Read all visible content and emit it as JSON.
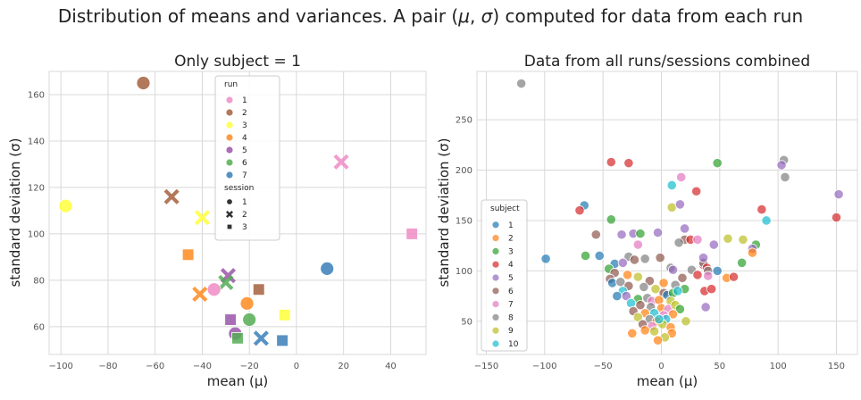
{
  "figure": {
    "suptitle_pre": "Distribution of means and variances.  A pair (",
    "suptitle_mu": "μ",
    "suptitle_comma": ", ",
    "suptitle_sigma": "σ",
    "suptitle_post": ") computed for data from each run"
  },
  "colors": {
    "background": "#ffffff",
    "grid": "#d8d8d8",
    "axis": "#555555"
  },
  "chart_data": [
    {
      "type": "scatter",
      "title": "Only subject = 1",
      "xlabel": "mean (μ)",
      "ylabel": "standard deviation (σ)",
      "xlim": [
        -105,
        55
      ],
      "ylim": [
        48,
        170
      ],
      "xticks": [
        -100,
        -80,
        -60,
        -40,
        -20,
        0,
        20,
        40
      ],
      "yticks": [
        60,
        80,
        100,
        120,
        140,
        160
      ],
      "grid": true,
      "legend": {
        "placement": "top-center",
        "hue_title": "run",
        "hue": [
          {
            "label": "1",
            "color": "#f08cc5"
          },
          {
            "label": "2",
            "color": "#a5603e"
          },
          {
            "label": "3",
            "color": "#ffff3a"
          },
          {
            "label": "4",
            "color": "#ff8a1e"
          },
          {
            "label": "5",
            "color": "#9a55a8"
          },
          {
            "label": "6",
            "color": "#55ad55"
          },
          {
            "label": "7",
            "color": "#3a7fb8"
          }
        ],
        "style_title": "session",
        "style": [
          {
            "label": "1",
            "marker": "circle"
          },
          {
            "label": "2",
            "marker": "x"
          },
          {
            "label": "3",
            "marker": "square"
          }
        ]
      },
      "points": [
        {
          "run": 2,
          "session": 1,
          "x": -65,
          "y": 165
        },
        {
          "run": 1,
          "session": 2,
          "x": 19,
          "y": 131
        },
        {
          "run": 2,
          "session": 2,
          "x": -53,
          "y": 116
        },
        {
          "run": 3,
          "session": 1,
          "x": -98,
          "y": 112
        },
        {
          "run": 3,
          "session": 2,
          "x": -40,
          "y": 107
        },
        {
          "run": 1,
          "session": 3,
          "x": 49,
          "y": 100
        },
        {
          "run": 4,
          "session": 3,
          "x": -46,
          "y": 91
        },
        {
          "run": 7,
          "session": 1,
          "x": 13,
          "y": 85
        },
        {
          "run": 5,
          "session": 2,
          "x": -29,
          "y": 82
        },
        {
          "run": 6,
          "session": 2,
          "x": -30,
          "y": 79
        },
        {
          "run": 2,
          "session": 3,
          "x": -16,
          "y": 76
        },
        {
          "run": 1,
          "session": 1,
          "x": -35,
          "y": 76
        },
        {
          "run": 4,
          "session": 2,
          "x": -41,
          "y": 74
        },
        {
          "run": 4,
          "session": 1,
          "x": -21,
          "y": 70
        },
        {
          "run": 3,
          "session": 3,
          "x": -5,
          "y": 65
        },
        {
          "run": 5,
          "session": 3,
          "x": -28,
          "y": 63
        },
        {
          "run": 6,
          "session": 1,
          "x": -20,
          "y": 63
        },
        {
          "run": 5,
          "session": 1,
          "x": -26,
          "y": 57
        },
        {
          "run": 6,
          "session": 3,
          "x": -25,
          "y": 55
        },
        {
          "run": 7,
          "session": 2,
          "x": -15,
          "y": 55
        },
        {
          "run": 7,
          "session": 3,
          "x": -6,
          "y": 54
        }
      ]
    },
    {
      "type": "scatter",
      "title": "Data from all runs/sessions combined",
      "xlabel": "mean (μ)",
      "ylabel": "standard deviation (σ)",
      "xlim": [
        -158,
        168
      ],
      "ylim": [
        17,
        298
      ],
      "xticks": [
        -150,
        -100,
        -50,
        0,
        50,
        100,
        150
      ],
      "yticks": [
        50,
        100,
        150,
        200,
        250
      ],
      "grid": true,
      "legend": {
        "placement": "lower-left",
        "hue_title": "subject",
        "hue": [
          {
            "label": "1",
            "color": "#1f77b4"
          },
          {
            "label": "2",
            "color": "#ff7f0e"
          },
          {
            "label": "3",
            "color": "#2ca02c"
          },
          {
            "label": "4",
            "color": "#d62728"
          },
          {
            "label": "5",
            "color": "#9467bd"
          },
          {
            "label": "6",
            "color": "#8c564b"
          },
          {
            "label": "7",
            "color": "#e377c2"
          },
          {
            "label": "8",
            "color": "#7f7f7f"
          },
          {
            "label": "9",
            "color": "#bcbd22"
          },
          {
            "label": "10",
            "color": "#17becf"
          }
        ]
      },
      "points": [
        {
          "subject": 8,
          "x": -120,
          "y": 286
        },
        {
          "subject": 4,
          "x": -43,
          "y": 208
        },
        {
          "subject": 4,
          "x": -28,
          "y": 207
        },
        {
          "subject": 3,
          "x": 48,
          "y": 207
        },
        {
          "subject": 8,
          "x": 105,
          "y": 210
        },
        {
          "subject": 5,
          "x": 103,
          "y": 205
        },
        {
          "subject": 8,
          "x": 106,
          "y": 193
        },
        {
          "subject": 7,
          "x": 17,
          "y": 193
        },
        {
          "subject": 10,
          "x": 9,
          "y": 185
        },
        {
          "subject": 4,
          "x": 30,
          "y": 179
        },
        {
          "subject": 5,
          "x": 152,
          "y": 176
        },
        {
          "subject": 1,
          "x": -66,
          "y": 165
        },
        {
          "subject": 4,
          "x": -70,
          "y": 160
        },
        {
          "subject": 9,
          "x": 9,
          "y": 163
        },
        {
          "subject": 5,
          "x": 16,
          "y": 166
        },
        {
          "subject": 4,
          "x": 86,
          "y": 161
        },
        {
          "subject": 3,
          "x": -43,
          "y": 151
        },
        {
          "subject": 4,
          "x": 150,
          "y": 153
        },
        {
          "subject": 10,
          "x": 90,
          "y": 150
        },
        {
          "subject": 5,
          "x": 20,
          "y": 142
        },
        {
          "subject": 6,
          "x": -56,
          "y": 136
        },
        {
          "subject": 5,
          "x": -34,
          "y": 136
        },
        {
          "subject": 5,
          "x": -24,
          "y": 137
        },
        {
          "subject": 3,
          "x": -18,
          "y": 137
        },
        {
          "subject": 5,
          "x": -3,
          "y": 138
        },
        {
          "subject": 6,
          "x": 20,
          "y": 131
        },
        {
          "subject": 4,
          "x": 25,
          "y": 131
        },
        {
          "subject": 7,
          "x": 31,
          "y": 131
        },
        {
          "subject": 8,
          "x": 15,
          "y": 128
        },
        {
          "subject": 5,
          "x": 45,
          "y": 126
        },
        {
          "subject": 9,
          "x": 57,
          "y": 132
        },
        {
          "subject": 9,
          "x": 70,
          "y": 131
        },
        {
          "subject": 3,
          "x": 81,
          "y": 126
        },
        {
          "subject": 7,
          "x": -20,
          "y": 126
        },
        {
          "subject": 5,
          "x": 78,
          "y": 122
        },
        {
          "subject": 2,
          "x": 78,
          "y": 118
        },
        {
          "subject": 1,
          "x": -99,
          "y": 112
        },
        {
          "subject": 3,
          "x": -65,
          "y": 115
        },
        {
          "subject": 1,
          "x": -53,
          "y": 115
        },
        {
          "subject": 8,
          "x": -28,
          "y": 114
        },
        {
          "subject": 6,
          "x": -23,
          "y": 111
        },
        {
          "subject": 8,
          "x": -14,
          "y": 112
        },
        {
          "subject": 6,
          "x": -1,
          "y": 113
        },
        {
          "subject": 1,
          "x": -40,
          "y": 107
        },
        {
          "subject": 5,
          "x": -33,
          "y": 108
        },
        {
          "subject": 3,
          "x": 69,
          "y": 108
        },
        {
          "subject": 4,
          "x": 36,
          "y": 106
        },
        {
          "subject": 8,
          "x": 36,
          "y": 108
        },
        {
          "subject": 5,
          "x": 36,
          "y": 113
        },
        {
          "subject": 4,
          "x": 39,
          "y": 103
        },
        {
          "subject": 8,
          "x": 8,
          "y": 103
        },
        {
          "subject": 5,
          "x": 10,
          "y": 101
        },
        {
          "subject": 8,
          "x": 26,
          "y": 101
        },
        {
          "subject": 8,
          "x": 40,
          "y": 100
        },
        {
          "subject": 1,
          "x": 48,
          "y": 100
        },
        {
          "subject": 3,
          "x": -45,
          "y": 102
        },
        {
          "subject": 6,
          "x": -40,
          "y": 98
        },
        {
          "subject": 6,
          "x": -44,
          "y": 92
        },
        {
          "subject": 1,
          "x": -42,
          "y": 88
        },
        {
          "subject": 2,
          "x": -29,
          "y": 96
        },
        {
          "subject": 9,
          "x": -20,
          "y": 94
        },
        {
          "subject": 6,
          "x": -10,
          "y": 90
        },
        {
          "subject": 2,
          "x": 2,
          "y": 88
        },
        {
          "subject": 6,
          "x": 18,
          "y": 93
        },
        {
          "subject": 4,
          "x": 31,
          "y": 96
        },
        {
          "subject": 7,
          "x": 40,
          "y": 95
        },
        {
          "subject": 2,
          "x": 56,
          "y": 93
        },
        {
          "subject": 4,
          "x": 62,
          "y": 94
        },
        {
          "subject": 8,
          "x": 12,
          "y": 86
        },
        {
          "subject": 3,
          "x": 20,
          "y": 82
        },
        {
          "subject": 4,
          "x": 37,
          "y": 80
        },
        {
          "subject": 4,
          "x": 43,
          "y": 82
        },
        {
          "subject": 8,
          "x": -35,
          "y": 89
        },
        {
          "subject": 6,
          "x": -28,
          "y": 85
        },
        {
          "subject": 10,
          "x": -33,
          "y": 80
        },
        {
          "subject": 1,
          "x": -38,
          "y": 75
        },
        {
          "subject": 8,
          "x": -15,
          "y": 84
        },
        {
          "subject": 9,
          "x": -5,
          "y": 82
        },
        {
          "subject": 6,
          "x": 2,
          "y": 78
        },
        {
          "subject": 1,
          "x": 5,
          "y": 76
        },
        {
          "subject": 3,
          "x": 10,
          "y": 78
        },
        {
          "subject": 10,
          "x": 14,
          "y": 80
        },
        {
          "subject": 5,
          "x": -30,
          "y": 75
        },
        {
          "subject": 3,
          "x": -20,
          "y": 72
        },
        {
          "subject": 8,
          "x": -12,
          "y": 73
        },
        {
          "subject": 7,
          "x": -8,
          "y": 70
        },
        {
          "subject": 2,
          "x": -2,
          "y": 71
        },
        {
          "subject": 9,
          "x": 8,
          "y": 70
        },
        {
          "subject": 5,
          "x": 38,
          "y": 64
        },
        {
          "subject": 10,
          "x": -26,
          "y": 68
        },
        {
          "subject": 6,
          "x": -18,
          "y": 66
        },
        {
          "subject": 8,
          "x": -9,
          "y": 64
        },
        {
          "subject": 2,
          "x": 0,
          "y": 63
        },
        {
          "subject": 7,
          "x": 6,
          "y": 62
        },
        {
          "subject": 9,
          "x": 12,
          "y": 66
        },
        {
          "subject": 3,
          "x": 16,
          "y": 62
        },
        {
          "subject": 6,
          "x": -24,
          "y": 60
        },
        {
          "subject": 2,
          "x": -14,
          "y": 58
        },
        {
          "subject": 10,
          "x": -6,
          "y": 58
        },
        {
          "subject": 7,
          "x": 2,
          "y": 56
        },
        {
          "subject": 2,
          "x": 10,
          "y": 57
        },
        {
          "subject": 9,
          "x": -20,
          "y": 54
        },
        {
          "subject": 8,
          "x": -10,
          "y": 52
        },
        {
          "subject": 2,
          "x": -4,
          "y": 50
        },
        {
          "subject": 10,
          "x": 4,
          "y": 52
        },
        {
          "subject": 9,
          "x": 21,
          "y": 50
        },
        {
          "subject": 6,
          "x": -16,
          "y": 47
        },
        {
          "subject": 7,
          "x": -8,
          "y": 45
        },
        {
          "subject": 9,
          "x": 1,
          "y": 47
        },
        {
          "subject": 2,
          "x": 8,
          "y": 44
        },
        {
          "subject": 10,
          "x": -2,
          "y": 52
        },
        {
          "subject": 2,
          "x": -25,
          "y": 38
        },
        {
          "subject": 2,
          "x": -14,
          "y": 41
        },
        {
          "subject": 9,
          "x": -6,
          "y": 40
        },
        {
          "subject": 2,
          "x": 9,
          "y": 38
        },
        {
          "subject": 9,
          "x": 3,
          "y": 34
        },
        {
          "subject": 2,
          "x": -3,
          "y": 31
        }
      ]
    }
  ]
}
